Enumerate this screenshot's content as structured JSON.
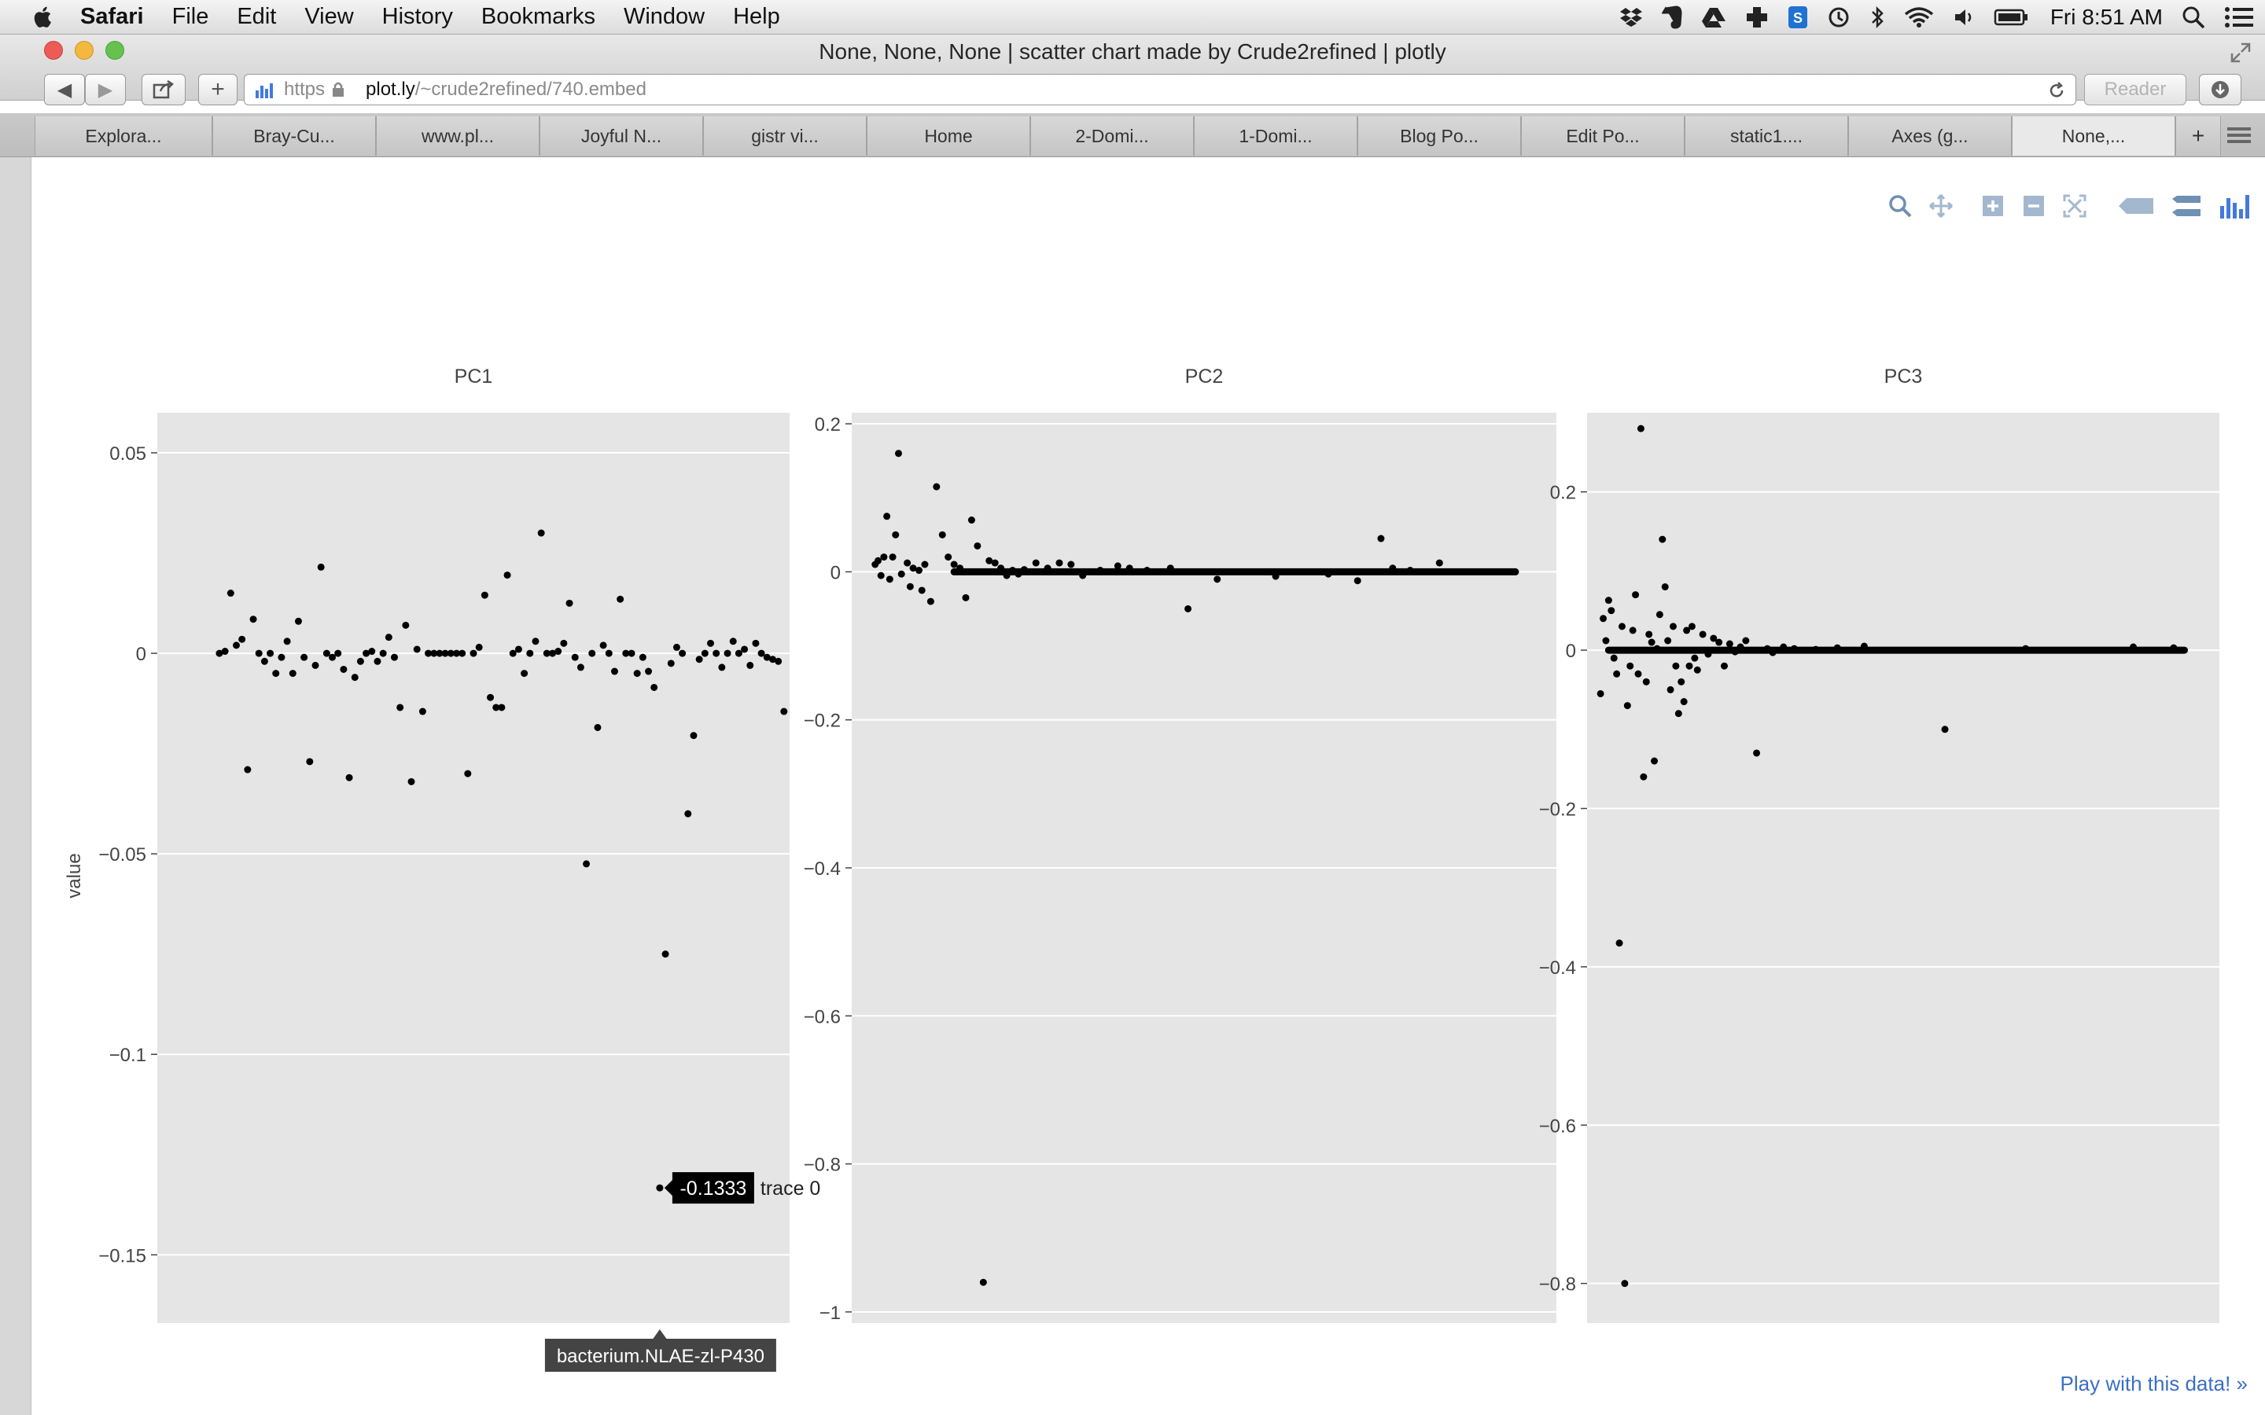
{
  "menubar": {
    "app_name": "Safari",
    "items": [
      "File",
      "Edit",
      "View",
      "History",
      "Bookmarks",
      "Window",
      "Help"
    ],
    "clock": "Fri 8:51 AM"
  },
  "window": {
    "title": "None, None, None | scatter chart made by Crude2refined | plotly",
    "url_scheme": "https",
    "url_host": "plot.ly",
    "url_path": "/~crude2refined/740.embed",
    "reader_label": "Reader"
  },
  "tabs": [
    {
      "label": "Explora..."
    },
    {
      "label": "Bray-Cu..."
    },
    {
      "label": "www.pl..."
    },
    {
      "label": "Joyful N..."
    },
    {
      "label": "gistr vi..."
    },
    {
      "label": "Home"
    },
    {
      "label": "2-Domi..."
    },
    {
      "label": "1-Domi..."
    },
    {
      "label": "Blog Po..."
    },
    {
      "label": "Edit Po..."
    },
    {
      "label": "static1...."
    },
    {
      "label": "Axes (g..."
    },
    {
      "label": "None,..."
    }
  ],
  "plot": {
    "ylabel": "value",
    "hover": {
      "value": "-0.1333",
      "trace": "trace 0",
      "x_label": "bacterium.NLAE-zl-P430"
    },
    "play_link": "Play with this data! »"
  },
  "colors": {
    "panel_bg": "#e5e5e5",
    "grid": "#ffffff",
    "point": "#000000",
    "link": "#3a6fc4"
  },
  "chart_data": [
    {
      "type": "scatter",
      "title": "PC1",
      "ylabel": "value",
      "ylim": [
        -0.167,
        0.06
      ],
      "yticks": [
        0.05,
        0,
        -0.05,
        -0.1,
        -0.15
      ],
      "ytick_labels": [
        "0.05",
        "0",
        "−0.05",
        "−0.1",
        "−0.15"
      ],
      "grid": true,
      "x": [
        1,
        2,
        3,
        4,
        5,
        6,
        7,
        8,
        9,
        10,
        11,
        12,
        13,
        14,
        15,
        16,
        17,
        18,
        19,
        20,
        21,
        22,
        23,
        24,
        25,
        26,
        27,
        28,
        29,
        30,
        31,
        32,
        33,
        34,
        35,
        36,
        37,
        38,
        39,
        40,
        41,
        42,
        43,
        44,
        45,
        46,
        47,
        48,
        49,
        50,
        51,
        52,
        53,
        54,
        55,
        56,
        57,
        58,
        59,
        60,
        61,
        62,
        63,
        64,
        65,
        66,
        67,
        68,
        69,
        70,
        71,
        72,
        73,
        74,
        75,
        76,
        77,
        78,
        79,
        80,
        81,
        82,
        83,
        84,
        85,
        86,
        87,
        88,
        89,
        90,
        91,
        92,
        93,
        94,
        95,
        96,
        97,
        98,
        99,
        100,
        101
      ],
      "y": [
        0,
        0.0005,
        0.015,
        0.002,
        0.0035,
        -0.029,
        0.0085,
        0,
        -0.002,
        0,
        -0.005,
        -0.001,
        0.003,
        -0.005,
        0.008,
        -0.001,
        -0.027,
        -0.003,
        0.0215,
        0,
        -0.001,
        0,
        -0.004,
        -0.031,
        -0.006,
        -0.002,
        0,
        0.0005,
        -0.002,
        0,
        0.004,
        -0.001,
        -0.0135,
        0.007,
        -0.032,
        0.001,
        -0.0145,
        0,
        0,
        0,
        0,
        0,
        0,
        0,
        -0.03,
        0,
        0.0015,
        0.0145,
        -0.011,
        -0.0135,
        -0.0135,
        0.0195,
        0,
        0.001,
        -0.005,
        0,
        0.003,
        0.03,
        0,
        0,
        0.0005,
        0.0025,
        0.0125,
        -0.001,
        -0.0035,
        -0.0525,
        0,
        -0.0185,
        0.002,
        0,
        -0.0045,
        0.0135,
        0,
        0,
        -0.005,
        -0.001,
        -0.0045,
        -0.0085,
        -0.1333,
        -0.075,
        -0.0025,
        0.0015,
        0,
        -0.04,
        -0.0205,
        -0.0015,
        0,
        0.0025,
        0,
        -0.0035,
        0,
        0.003,
        0,
        0.001,
        -0.003,
        0.0025,
        0,
        -0.001,
        -0.0015,
        -0.002,
        -0.0145
      ]
    },
    {
      "type": "scatter",
      "title": "PC2",
      "ylim": [
        -1.015,
        0.215
      ],
      "yticks": [
        0.2,
        0,
        -0.2,
        -0.4,
        -0.6,
        -0.8,
        -1
      ],
      "ytick_labels": [
        "0.2",
        "0",
        "−0.2",
        "−0.4",
        "−0.6",
        "−0.8",
        "−1"
      ],
      "grid": true,
      "dense_band": {
        "y": 0,
        "x_range": [
          30,
          222
        ]
      },
      "x": [
        3,
        4,
        5,
        6,
        7,
        8,
        9,
        10,
        11,
        12,
        14,
        15,
        16,
        18,
        19,
        20,
        22,
        24,
        26,
        28,
        30,
        32,
        34,
        36,
        38,
        40,
        42,
        44,
        46,
        48,
        50,
        52,
        54,
        58,
        62,
        66,
        70,
        74,
        80,
        86,
        90,
        96,
        104,
        110,
        120,
        140,
        158,
        168,
        176,
        180,
        186,
        196
      ],
      "y": [
        0.01,
        0.015,
        -0.005,
        0.02,
        0.075,
        -0.01,
        0.02,
        0.05,
        0.16,
        -0.003,
        0.012,
        -0.02,
        0.005,
        0.002,
        -0.025,
        0.01,
        -0.04,
        0.115,
        0.05,
        0.02,
        0.01,
        0.005,
        -0.035,
        0.07,
        0.035,
        -0.96,
        0.015,
        0.012,
        0.005,
        -0.005,
        0.002,
        -0.003,
        0.003,
        0.012,
        0.005,
        0.012,
        0.01,
        -0.005,
        0.002,
        0.008,
        0.005,
        0.002,
        0.005,
        -0.05,
        -0.01,
        -0.006,
        -0.003,
        -0.012,
        0.045,
        0.005,
        0.002,
        0.012
      ]
    },
    {
      "type": "scatter",
      "title": "PC3",
      "ylim": [
        -0.85,
        0.3
      ],
      "yticks": [
        0.2,
        0,
        -0.2,
        -0.4,
        -0.6,
        -0.8
      ],
      "ytick_labels": [
        "0.2",
        "0",
        "−0.2",
        "−0.4",
        "−0.6",
        "−0.8"
      ],
      "grid": true,
      "dense_band": {
        "y": 0,
        "x_range": [
          5,
          219
        ]
      },
      "x": [
        2,
        3,
        4,
        5,
        6,
        7,
        8,
        9,
        10,
        11,
        12,
        13,
        14,
        15,
        16,
        17,
        18,
        19,
        20,
        21,
        22,
        23,
        24,
        25,
        26,
        27,
        28,
        29,
        30,
        31,
        32,
        33,
        34,
        35,
        36,
        37,
        38,
        40,
        42,
        44,
        46,
        48,
        50,
        52,
        54,
        56,
        60,
        64,
        66,
        70,
        74,
        82,
        90,
        100,
        130,
        160,
        200,
        215
      ],
      "y": [
        -0.055,
        0.04,
        0.012,
        0.063,
        0.05,
        -0.01,
        -0.03,
        -0.37,
        0.03,
        -0.8,
        -0.07,
        -0.02,
        0.025,
        0.07,
        -0.03,
        0.28,
        -0.16,
        -0.04,
        0.02,
        0.01,
        -0.14,
        0.002,
        0.045,
        0.14,
        0.08,
        0.012,
        -0.05,
        0.03,
        -0.02,
        -0.08,
        -0.04,
        -0.065,
        0.025,
        -0.02,
        0.03,
        -0.01,
        -0.025,
        0.02,
        -0.005,
        0.015,
        0.01,
        -0.02,
        0.008,
        -0.002,
        0.004,
        0.012,
        -0.13,
        0.002,
        -0.003,
        0.004,
        0.002,
        0.001,
        0.003,
        0.005,
        -0.1,
        0.002,
        0.004,
        0.003
      ]
    }
  ]
}
